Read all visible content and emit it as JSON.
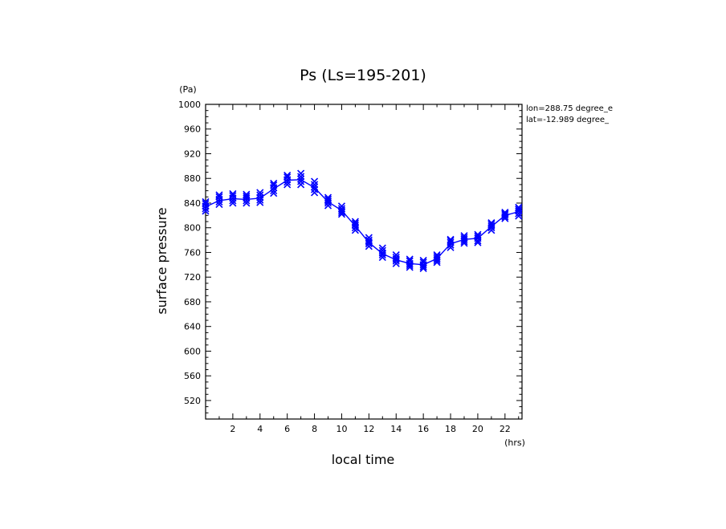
{
  "chart_data": {
    "type": "line",
    "title": "Ps (Ls=195-201)",
    "xlabel": "local time",
    "ylabel": "surface pressure",
    "x_unit": "(hrs)",
    "y_unit": "(Pa)",
    "xlim": [
      0,
      23.25
    ],
    "ylim": [
      490,
      1000
    ],
    "x_ticks": [
      2,
      4,
      6,
      8,
      10,
      12,
      14,
      16,
      18,
      20,
      22
    ],
    "y_ticks": [
      520,
      560,
      600,
      640,
      680,
      720,
      760,
      800,
      840,
      880,
      920,
      960,
      1000
    ],
    "annotations": [
      "lon=288.75 degree_e",
      "lat=-12.989 degree_"
    ],
    "color": "#0000ff",
    "series": [
      {
        "x": [
          0,
          1,
          2,
          3,
          4,
          5,
          6,
          7,
          8,
          9,
          10,
          11,
          12,
          13,
          14,
          15,
          16,
          17,
          18,
          19,
          20,
          21,
          22,
          23
        ],
        "values": [
          834,
          844,
          847,
          846,
          848,
          863,
          877,
          878,
          865,
          842,
          828,
          803,
          776,
          758,
          748,
          742,
          740,
          750,
          774,
          781,
          783,
          802,
          820,
          826
        ]
      }
    ],
    "markers": [
      {
        "x": 0,
        "ys": [
          827,
          831,
          835,
          839,
          842
        ]
      },
      {
        "x": 1,
        "ys": [
          838,
          842,
          846,
          850,
          853
        ]
      },
      {
        "x": 2,
        "ys": [
          840,
          844,
          848,
          852,
          855
        ]
      },
      {
        "x": 3,
        "ys": [
          840,
          844,
          848,
          851,
          854
        ]
      },
      {
        "x": 4,
        "ys": [
          841,
          845,
          849,
          853,
          857
        ]
      },
      {
        "x": 5,
        "ys": [
          856,
          860,
          865,
          869,
          872
        ]
      },
      {
        "x": 6,
        "ys": [
          870,
          874,
          878,
          882,
          885
        ]
      },
      {
        "x": 7,
        "ys": [
          870,
          875,
          879,
          883,
          888
        ]
      },
      {
        "x": 8,
        "ys": [
          857,
          862,
          866,
          870,
          875
        ]
      },
      {
        "x": 9,
        "ys": [
          836,
          840,
          843,
          846,
          849
        ]
      },
      {
        "x": 10,
        "ys": [
          822,
          825,
          828,
          831,
          835
        ]
      },
      {
        "x": 11,
        "ys": [
          796,
          800,
          804,
          807,
          810
        ]
      },
      {
        "x": 12,
        "ys": [
          770,
          774,
          777,
          780,
          784
        ]
      },
      {
        "x": 13,
        "ys": [
          752,
          756,
          759,
          763,
          767
        ]
      },
      {
        "x": 14,
        "ys": [
          742,
          746,
          749,
          752,
          756
        ]
      },
      {
        "x": 15,
        "ys": [
          736,
          739,
          742,
          746,
          749
        ]
      },
      {
        "x": 16,
        "ys": [
          734,
          737,
          740,
          744,
          747
        ]
      },
      {
        "x": 17,
        "ys": [
          744,
          747,
          750,
          753,
          756
        ]
      },
      {
        "x": 18,
        "ys": [
          768,
          772,
          776,
          779,
          781
        ]
      },
      {
        "x": 19,
        "ys": [
          775,
          778,
          781,
          784,
          787
        ]
      },
      {
        "x": 20,
        "ys": [
          776,
          779,
          783,
          786,
          789
        ]
      },
      {
        "x": 21,
        "ys": [
          796,
          800,
          803,
          806,
          808
        ]
      },
      {
        "x": 22,
        "ys": [
          815,
          818,
          821,
          823,
          825
        ]
      },
      {
        "x": 23,
        "ys": [
          819,
          823,
          827,
          830,
          833
        ]
      }
    ]
  }
}
